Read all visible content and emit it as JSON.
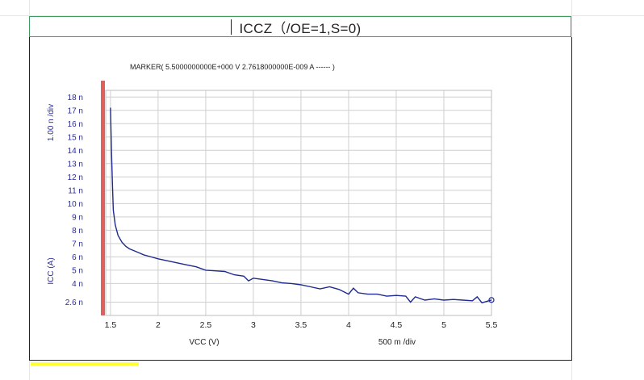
{
  "sheet": {
    "title_cell": "ICCZ（/OE=1,S=0)"
  },
  "chart_data": {
    "type": "line",
    "marker_text": "MARKER( 5.5000000000E+000 V   2.7618000000E-009 A  ------ )",
    "xlabel": "VCC (V)",
    "x_div_label": "500 m /div",
    "ylabel": "ICC (A)",
    "y_div_label": "1.00 n /div",
    "xlim": [
      1.45,
      5.5
    ],
    "ylim": [
      1.6,
      18.5
    ],
    "x_ticks": [
      1.5,
      2,
      2.5,
      3,
      3.5,
      4,
      4.5,
      5,
      5.5
    ],
    "x_tick_labels": [
      "1.5",
      "2",
      "2.5",
      "3",
      "3.5",
      "4",
      "4.5",
      "5",
      "5.5"
    ],
    "y_ticks": [
      2.6,
      4,
      5,
      6,
      7,
      8,
      9,
      10,
      11,
      12,
      13,
      14,
      15,
      16,
      17,
      18
    ],
    "y_tick_labels": [
      "2.6 n",
      "4 n",
      "5 n",
      "6 n",
      "7 n",
      "8 n",
      "9 n",
      "10 n",
      "11 n",
      "12 n",
      "13 n",
      "14 n",
      "15 n",
      "16 n",
      "17 n",
      "18 n"
    ],
    "grid": true,
    "series": [
      {
        "color": "#1f2a8f",
        "x": [
          1.5,
          1.51,
          1.52,
          1.53,
          1.55,
          1.58,
          1.62,
          1.66,
          1.7,
          1.75,
          1.8,
          1.85,
          1.9,
          2.0,
          2.1,
          2.2,
          2.3,
          2.4,
          2.5,
          2.6,
          2.7,
          2.8,
          2.9,
          2.95,
          3.0,
          3.1,
          3.2,
          3.3,
          3.4,
          3.5,
          3.6,
          3.7,
          3.8,
          3.9,
          4.0,
          4.05,
          4.1,
          4.2,
          4.3,
          4.4,
          4.5,
          4.6,
          4.65,
          4.7,
          4.8,
          4.9,
          5.0,
          5.1,
          5.2,
          5.3,
          5.35,
          5.4,
          5.5
        ],
        "y": [
          17.2,
          14.0,
          11.5,
          9.5,
          8.4,
          7.6,
          7.1,
          6.8,
          6.6,
          6.45,
          6.3,
          6.15,
          6.05,
          5.85,
          5.7,
          5.55,
          5.4,
          5.25,
          5.0,
          4.95,
          4.9,
          4.65,
          4.55,
          4.2,
          4.4,
          4.3,
          4.2,
          4.05,
          4.0,
          3.9,
          3.75,
          3.6,
          3.75,
          3.55,
          3.2,
          3.65,
          3.3,
          3.2,
          3.2,
          3.05,
          3.1,
          3.05,
          2.6,
          3.0,
          2.75,
          2.85,
          2.75,
          2.8,
          2.75,
          2.7,
          3.0,
          2.55,
          2.76
        ]
      }
    ]
  }
}
